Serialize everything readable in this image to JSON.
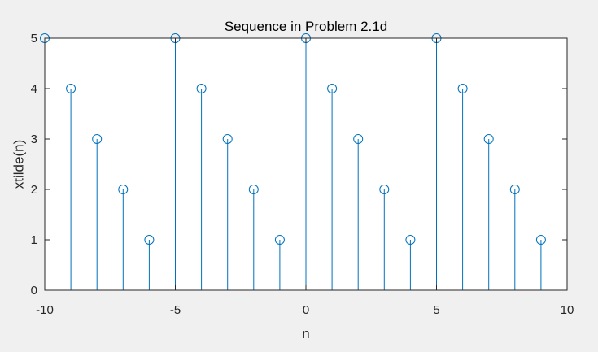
{
  "chart_data": {
    "type": "stem",
    "title": "Sequence in Problem 2.1d",
    "xlabel": "n",
    "ylabel": "xtilde(n)",
    "xlim": [
      -10,
      10
    ],
    "ylim": [
      0,
      5
    ],
    "xticks": [
      -10,
      -5,
      0,
      5,
      10
    ],
    "yticks": [
      0,
      1,
      2,
      3,
      4,
      5
    ],
    "grid": false,
    "series": [
      {
        "color": "#0072BD",
        "marker": "circle",
        "x": [
          -10,
          -9,
          -8,
          -7,
          -6,
          -5,
          -4,
          -3,
          -2,
          -1,
          0,
          1,
          2,
          3,
          4,
          5,
          6,
          7,
          8,
          9
        ],
        "y": [
          5,
          4,
          3,
          2,
          1,
          5,
          4,
          3,
          2,
          1,
          5,
          4,
          3,
          2,
          1,
          5,
          4,
          3,
          2,
          1
        ]
      }
    ]
  },
  "colors": {
    "figure_background": "#f0f0f0",
    "axes_background": "#ffffff",
    "axes_line": "#262626",
    "stem": "#0072BD"
  }
}
